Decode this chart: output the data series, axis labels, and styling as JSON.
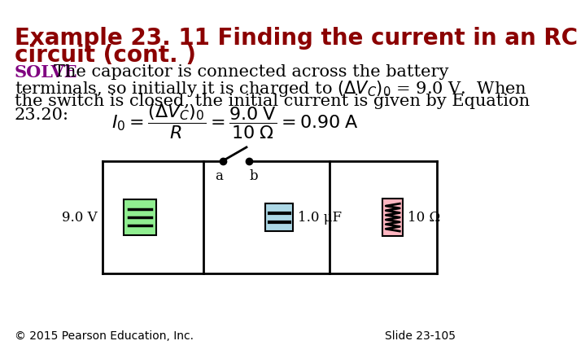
{
  "title_line1": "Example 23. 11 Finding the current in an RC",
  "title_line2": "circuit (cont. )",
  "title_color": "#8B0000",
  "title_fontsize": 20,
  "solve_color": "#800080",
  "body_color": "#000000",
  "body_fontsize": 15,
  "footer_left": "© 2015 Pearson Education, Inc.",
  "footer_right": "Slide 23-105",
  "footer_fontsize": 10,
  "background_color": "#ffffff",
  "circuit": {
    "battery_label": "9.0 V",
    "capacitor_label": "1.0 μF",
    "resistor_label": "10 Ω",
    "battery_fill": "#90EE90",
    "resistor_fill": "#FFB6C1",
    "switch_label_a": "a",
    "switch_label_b": "b"
  }
}
